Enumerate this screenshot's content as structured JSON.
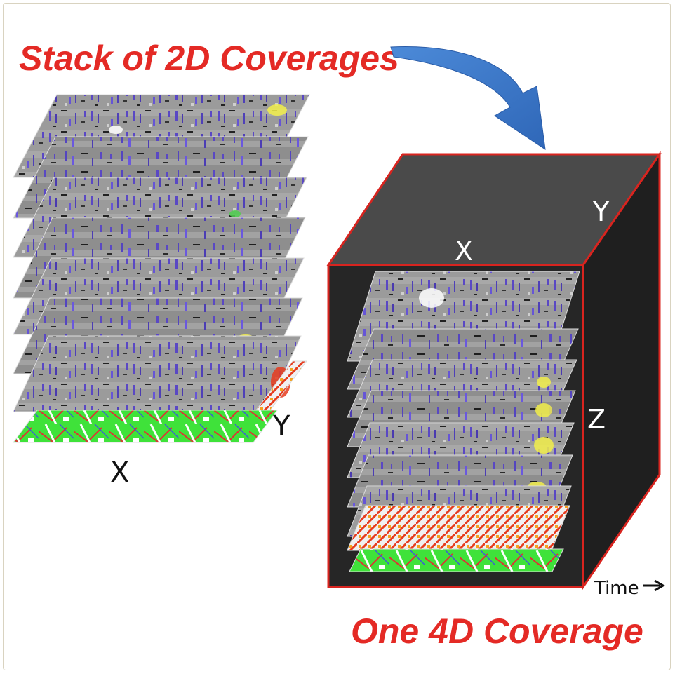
{
  "labels": {
    "stack_title": "Stack of 2D Coverages",
    "cube_title": "One 4D Coverage",
    "stack_x": "X",
    "stack_y": "Y",
    "cube_x": "X",
    "cube_y": "Y",
    "cube_z": "Z",
    "time": "Time"
  },
  "colors": {
    "title": "#e42a25",
    "arrow": "#3a78c9",
    "cube_edge": "#d8241f",
    "cube_front": "#262626",
    "cube_top": "#4a4a4a",
    "cube_side": "#1f1f1f",
    "layer_gray": "#9a9a9a",
    "layer_purple": "#5a48c4",
    "layer_yellow": "#f2ee4a",
    "base_green": "#3fe23a"
  },
  "icons": {
    "flow_arrow": "curved-arrow-icon",
    "time_arrow": "right-arrow-icon"
  }
}
